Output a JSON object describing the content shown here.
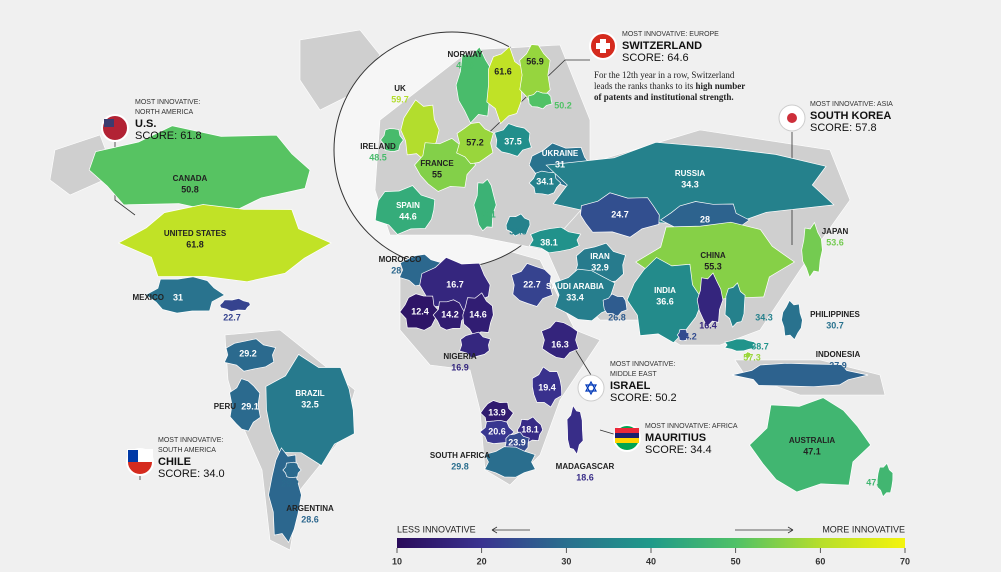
{
  "map": {
    "regions": [
      {
        "name": "CANADA",
        "value": 50.8
      },
      {
        "name": "UNITED STATES",
        "value": 61.8
      },
      {
        "name": "MEXICO",
        "value": 31
      },
      {
        "value": 22.7
      },
      {
        "value": 29.2
      },
      {
        "name": "PERU",
        "value": 29.1
      },
      {
        "name": "BRAZIL",
        "value": 32.5
      },
      {
        "name": "ARGENTINA",
        "value": 28.6
      },
      {
        "value": 29.2
      },
      {
        "name": "NORWAY",
        "value": 48.8
      },
      {
        "value": 61.6
      },
      {
        "value": 56.9
      },
      {
        "value": 50.2
      },
      {
        "name": "UK",
        "value": 59.7
      },
      {
        "name": "IRELAND",
        "value": 48.5
      },
      {
        "name": "FRANCE",
        "value": 55
      },
      {
        "name": "SPAIN",
        "value": 44.6
      },
      {
        "value": 57.2
      },
      {
        "value": 37.5
      },
      {
        "name": "UKRAINE",
        "value": 31
      },
      {
        "value": 34.1
      },
      {
        "value": 46.1
      },
      {
        "value": 34.5
      },
      {
        "value": 38.1
      },
      {
        "name": "RUSSIA",
        "value": 34.3
      },
      {
        "value": 24.7
      },
      {
        "value": 28
      },
      {
        "name": "CHINA",
        "value": 55.3
      },
      {
        "name": "JAPAN",
        "value": 53.6
      },
      {
        "name": "IRAN",
        "value": 32.9
      },
      {
        "name": "SAUDI ARABIA",
        "value": 33.4
      },
      {
        "value": 26.8
      },
      {
        "name": "INDIA",
        "value": 36.6
      },
      {
        "value": 24.2
      },
      {
        "value": 16.4
      },
      {
        "value": 34.3
      },
      {
        "value": 38.7
      },
      {
        "value": 57.3
      },
      {
        "name": "PHILIPPINES",
        "value": 30.7
      },
      {
        "name": "INDONESIA",
        "value": 27.9
      },
      {
        "name": "AUSTRALIA",
        "value": 47.1
      },
      {
        "value": 47.2
      },
      {
        "name": "MOROCCO",
        "value": 28.8
      },
      {
        "value": 22.7
      },
      {
        "value": 16.7
      },
      {
        "value": 12.4
      },
      {
        "value": 14.2
      },
      {
        "value": 14.6
      },
      {
        "name": "NIGERIA",
        "value": 16.9
      },
      {
        "value": 16.3
      },
      {
        "value": 19.4
      },
      {
        "value": 13.9
      },
      {
        "value": 20.6
      },
      {
        "value": 18.1
      },
      {
        "value": 23.9
      },
      {
        "name": "SOUTH AFRICA",
        "value": 29.8
      },
      {
        "name": "MADAGASCAR",
        "value": 18.6
      }
    ],
    "callouts": [
      {
        "region": [
          "MOST INNOVATIVE: EUROPE"
        ],
        "country": "SWITZERLAND",
        "score_label": "SCORE:",
        "score": 64.6,
        "description": [
          {
            "text": "For the 12th year in a row, Switzerland"
          },
          {
            "text": "leads the ranks thanks to its ",
            "bold": "high number"
          },
          {
            "bold": "of patents and institutional strength."
          }
        ]
      },
      {
        "region": [
          "MOST INNOVATIVE:",
          "NORTH AMERICA"
        ],
        "country": "U.S.",
        "score_label": "SCORE:",
        "score": 61.8
      },
      {
        "region": [
          "MOST INNOVATIVE: ASIA"
        ],
        "country": "SOUTH KOREA",
        "score_label": "SCORE:",
        "score": 57.8
      },
      {
        "region": [
          "MOST INNOVATIVE:",
          "MIDDLE EAST"
        ],
        "country": "ISRAEL",
        "score_label": "SCORE:",
        "score": 50.2
      },
      {
        "region": [
          "MOST INNOVATIVE: AFRICA"
        ],
        "country": "MAURITIUS",
        "score_label": "SCORE:",
        "score": 34.4
      },
      {
        "region": [
          "MOST INNOVATIVE:",
          "SOUTH AMERICA"
        ],
        "country": "CHILE",
        "score_label": "SCORE:",
        "score": {
          "value": 34,
          "label": "34.0"
        }
      }
    ],
    "colorbar": {
      "low_label": "LESS INNOVATIVE",
      "high_label": "MORE INNOVATIVE",
      "lim": [
        10,
        70
      ],
      "ticks": [
        10,
        20,
        30,
        40,
        50,
        60,
        70
      ],
      "colors": [
        "#2a0b5a",
        "#3a3390",
        "#2a6f8e",
        "#1f9a8a",
        "#4fc167",
        "#b6de2b",
        "#f4f40e"
      ]
    }
  }
}
